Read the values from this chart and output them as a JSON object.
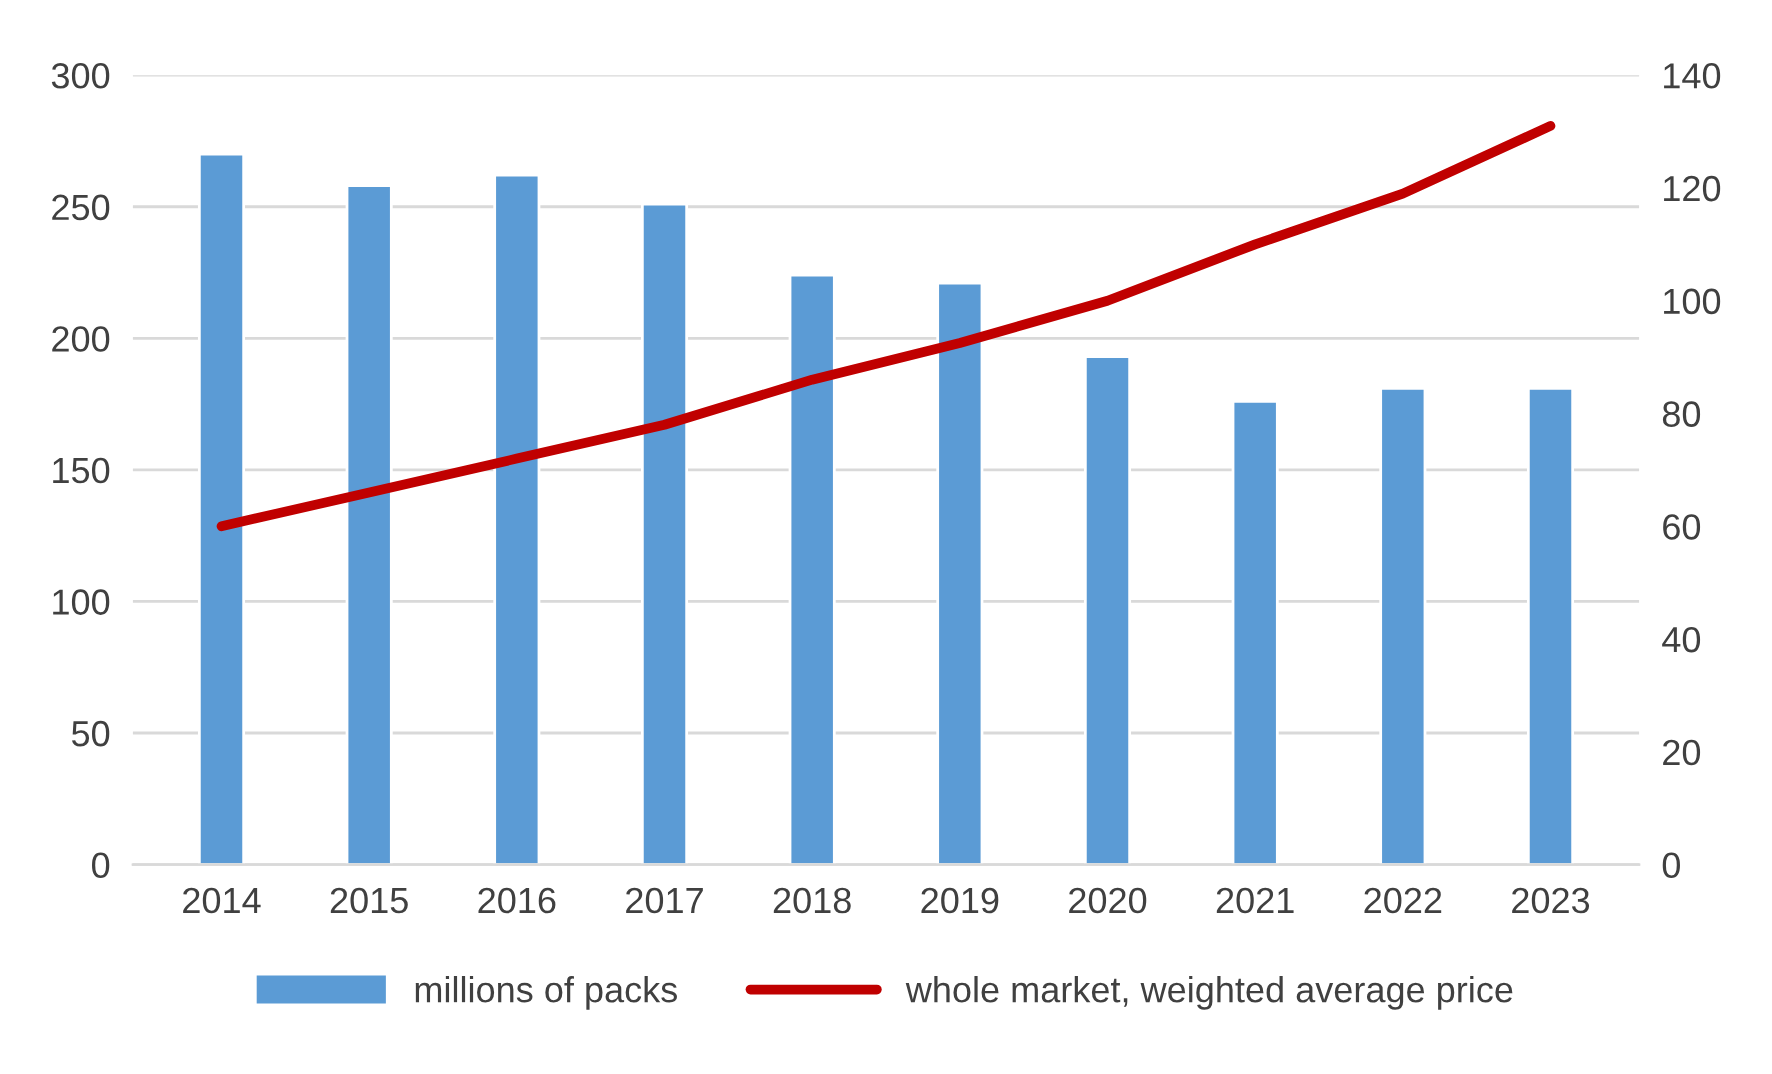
{
  "chart_data": {
    "type": "bar",
    "categories": [
      "2014",
      "2015",
      "2016",
      "2017",
      "2018",
      "2019",
      "2020",
      "2021",
      "2022",
      "2023"
    ],
    "series": [
      {
        "name": "millions of packs",
        "color": "#5b9bd5",
        "values": [
          270,
          258,
          262,
          251,
          224,
          221,
          193,
          176,
          181,
          181
        ]
      },
      {
        "name": "whole market, weighted average price",
        "type": "line",
        "axis": "y2",
        "color": "#c00000",
        "values": [
          60,
          66,
          72,
          78,
          86,
          92.5,
          100,
          110,
          119,
          131
        ]
      }
    ],
    "ylim": [
      0,
      300
    ],
    "yticks": [
      0,
      50,
      100,
      150,
      200,
      250,
      300
    ],
    "y2lim": [
      0,
      140
    ],
    "y2ticks": [
      0,
      20,
      40,
      60,
      80,
      100,
      120,
      140
    ],
    "grid": "y",
    "legend": "bottom"
  }
}
